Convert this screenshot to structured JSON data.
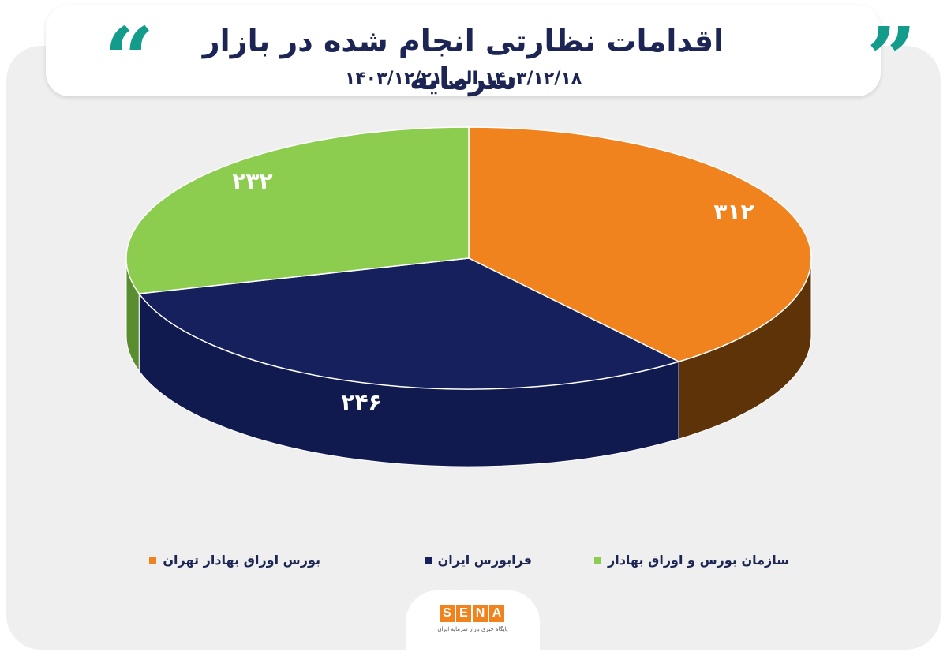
{
  "header": {
    "title": "اقدامات نظارتی انجام شده در بازار سرمایه",
    "subtitle": "۱۴۰۳/۱۲/۱۸ الی ۱۴۰۳/۱۲/۲۱",
    "quote_open": "“",
    "quote_close": "”"
  },
  "chart_data": {
    "type": "pie",
    "title": "اقدامات نظارتی انجام شده در بازار سرمایه",
    "subtitle": "۱۴۰۳/۱۲/۱۸ الی ۱۴۰۳/۱۲/۲۱",
    "legend_position": "bottom",
    "three_d": true,
    "slices": [
      {
        "label": "بورس اوراق بهادار تهران",
        "value": 312,
        "value_label": "۳۱۲",
        "color": "#f0831e",
        "side_color": "#5e3308"
      },
      {
        "label": "فرابورس ایران",
        "value": 246,
        "value_label": "۲۴۶",
        "color": "#15205c",
        "side_color": "#111a4e"
      },
      {
        "label": "سازمان بورس و اوراق بهادار",
        "value": 232,
        "value_label": "۲۳۲",
        "color": "#8ccc4e",
        "side_color": "#5a8c30"
      }
    ]
  },
  "brand": {
    "letters": [
      "S",
      "E",
      "N",
      "A"
    ],
    "tagline": "پایگاه خبری بازار سرمایه ایران",
    "color": "#f0831e"
  }
}
